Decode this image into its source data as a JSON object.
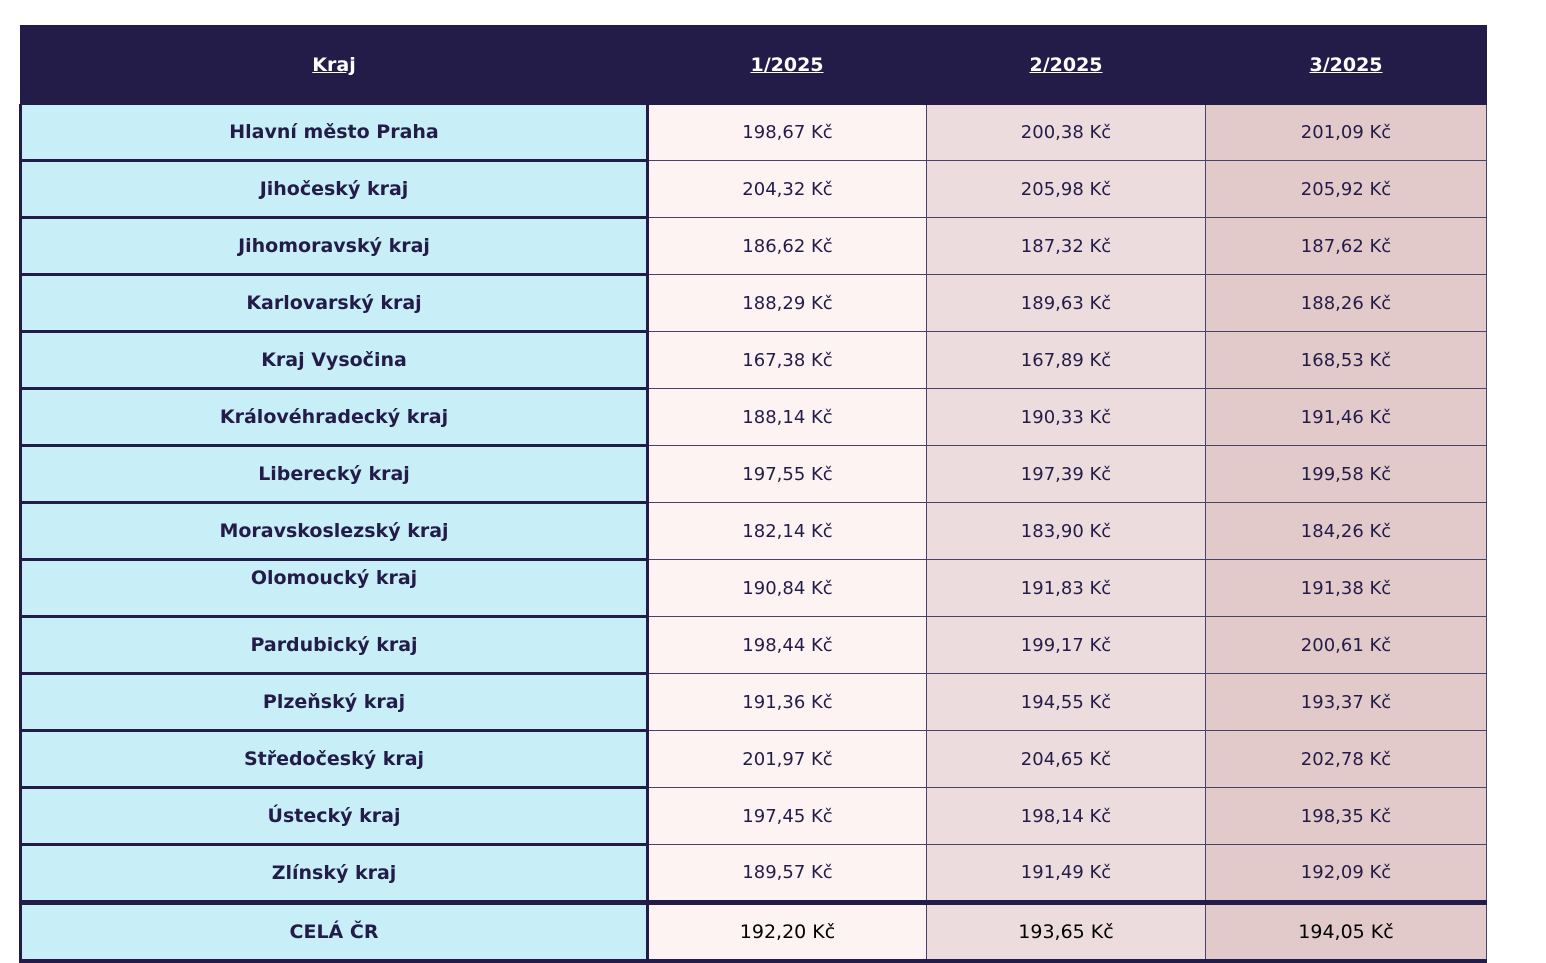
{
  "table": {
    "headers": [
      "Kraj",
      "1/2025",
      "2/2025",
      "3/2025"
    ],
    "rows": [
      {
        "region": "Hlavní město Praha",
        "values": [
          "198,67 Kč",
          "200,38 Kč",
          "201,09 Kč"
        ]
      },
      {
        "region": "Jihočeský kraj",
        "values": [
          "204,32 Kč",
          "205,98 Kč",
          "205,92 Kč"
        ]
      },
      {
        "region": "Jihomoravský kraj",
        "values": [
          "186,62 Kč",
          "187,32 Kč",
          "187,62 Kč"
        ]
      },
      {
        "region": "Karlovarský kraj",
        "values": [
          "188,29 Kč",
          "189,63 Kč",
          "188,26 Kč"
        ]
      },
      {
        "region": "Kraj Vysočina",
        "values": [
          "167,38 Kč",
          "167,89 Kč",
          "168,53 Kč"
        ]
      },
      {
        "region": "Královéhradecký kraj",
        "values": [
          "188,14 Kč",
          "190,33 Kč",
          "191,46 Kč"
        ]
      },
      {
        "region": "Liberecký kraj",
        "values": [
          "197,55 Kč",
          "197,39 Kč",
          "199,58 Kč"
        ]
      },
      {
        "region": "Moravskoslezský kraj",
        "values": [
          "182,14 Kč",
          "183,90 Kč",
          "184,26 Kč"
        ]
      },
      {
        "region": "Olomoucký kraj",
        "values": [
          "190,84 Kč",
          "191,83 Kč",
          "191,38 Kč"
        ]
      },
      {
        "region": "Pardubický kraj",
        "values": [
          "198,44 Kč",
          "199,17 Kč",
          "200,61 Kč"
        ]
      },
      {
        "region": "Plzeňský kraj",
        "values": [
          "191,36 Kč",
          "194,55 Kč",
          "193,37 Kč"
        ]
      },
      {
        "region": "Středočeský kraj",
        "values": [
          "201,97 Kč",
          "204,65 Kč",
          "202,78 Kč"
        ]
      },
      {
        "region": "Ústecký kraj",
        "values": [
          "197,45 Kč",
          "198,14 Kč",
          "198,35 Kč"
        ]
      },
      {
        "region": "Zlínský kraj",
        "values": [
          "189,57 Kč",
          "191,49 Kč",
          "192,09 Kč"
        ]
      }
    ],
    "total": {
      "region": "CELÁ ČR",
      "values": [
        "192,20 Kč",
        "193,65 Kč",
        "194,05 Kč"
      ]
    }
  },
  "colors": {
    "header_bg": "#231c48",
    "region_bg": "#c8eef7",
    "month1_bg": "#fdf3f3",
    "month2_bg": "#eddcdd",
    "month3_bg": "#e2cacb"
  }
}
